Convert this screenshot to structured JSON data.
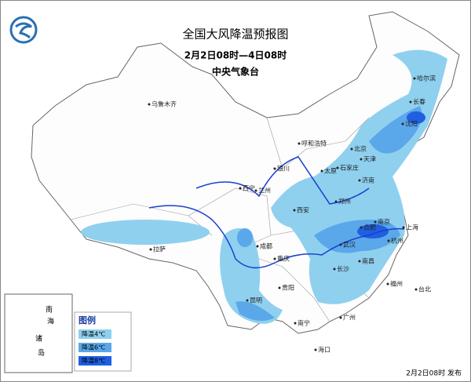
{
  "header": {
    "title": "全国大风降温预报图",
    "subtitle": "2月2日08时—4日08时",
    "issuer": "中央气象台"
  },
  "legend": {
    "title": "图例",
    "items": [
      {
        "label": "降温4℃",
        "color": "#8fd0ef"
      },
      {
        "label": "降温6℃",
        "color": "#5aa7ea"
      },
      {
        "label": "降温8℃",
        "color": "#1f5fe0"
      }
    ]
  },
  "cities": [
    "乌鲁木齐",
    "哈尔滨",
    "长春",
    "沈阳",
    "呼和浩特",
    "北京",
    "天津",
    "石家庄",
    "太原",
    "济南",
    "银川",
    "西宁",
    "兰州",
    "郑州",
    "西安",
    "合肥",
    "南京",
    "上海",
    "杭州",
    "武汉",
    "成都",
    "重庆",
    "拉萨",
    "长沙",
    "南昌",
    "贵阳",
    "昆明",
    "南宁",
    "广州",
    "福州",
    "台北",
    "海口"
  ],
  "inset": [
    "南",
    "海",
    "诸",
    "岛"
  ],
  "footer": "2月2日08时 发布"
}
